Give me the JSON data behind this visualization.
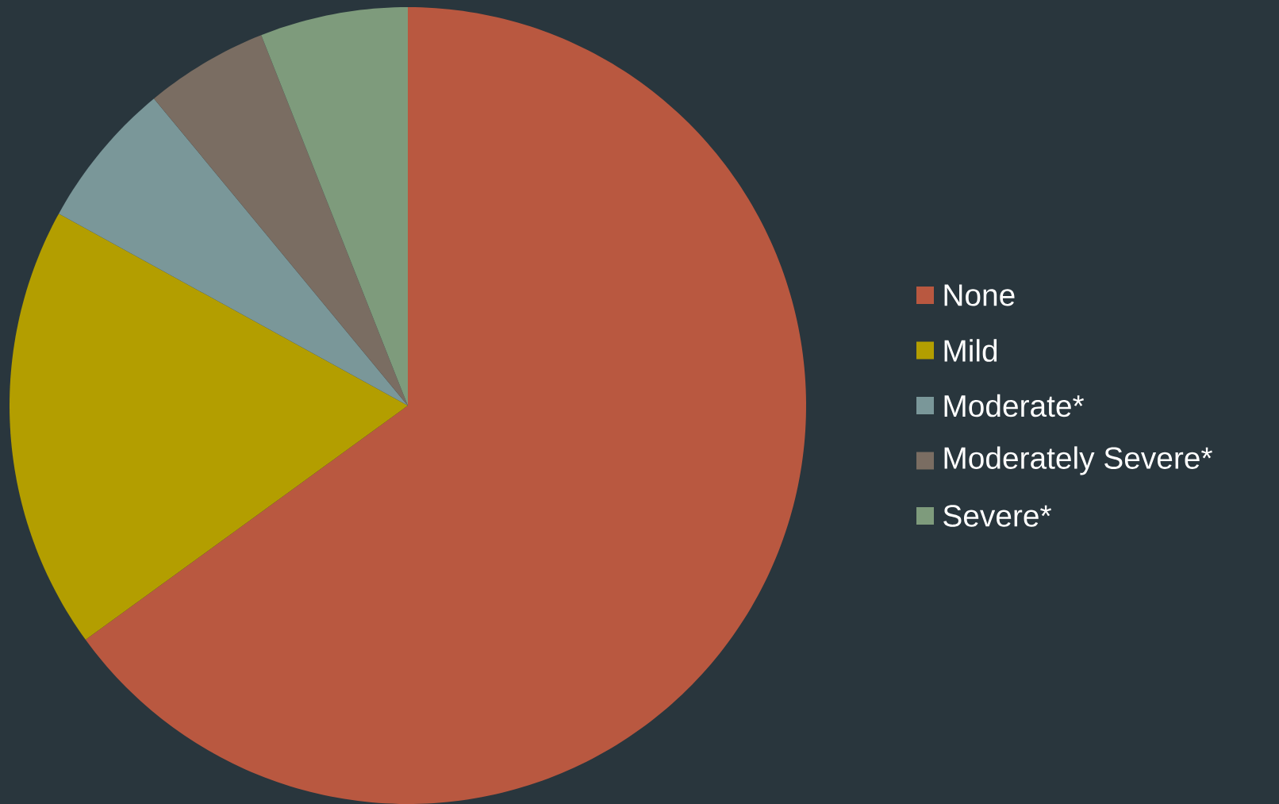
{
  "chart_data": {
    "type": "pie",
    "categories": [
      "None",
      "Mild",
      "Moderate*",
      "Moderately Severe*",
      "Severe*"
    ],
    "values": [
      65,
      18,
      6,
      5,
      6
    ],
    "colors": [
      "#b95840",
      "#b39e00",
      "#7a9799",
      "#7a6d62",
      "#7e9b7c"
    ],
    "legend": "right"
  }
}
